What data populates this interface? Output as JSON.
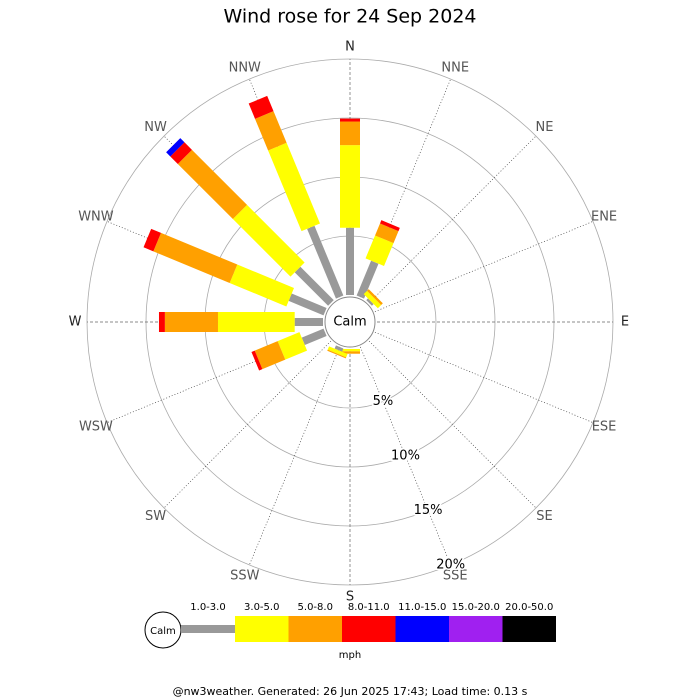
{
  "chart_data": {
    "type": "windrose",
    "title": "Wind rose for 24 Sep 2024",
    "directions": [
      "N",
      "NNE",
      "NE",
      "ENE",
      "E",
      "ESE",
      "SE",
      "SSE",
      "S",
      "SSW",
      "SW",
      "WSW",
      "W",
      "WNW",
      "NW",
      "NNW"
    ],
    "calm_label": "Calm",
    "rlim": [
      0,
      20
    ],
    "rticks": [
      {
        "value": 5,
        "label": "5%"
      },
      {
        "value": 10,
        "label": "10%"
      },
      {
        "value": 15,
        "label": "15%"
      },
      {
        "value": 20,
        "label": "20%"
      }
    ],
    "series": [
      {
        "name": "1.0-3.0",
        "color": "#999999",
        "values": [
          5.7,
          3.2,
          0.2,
          0,
          0,
          0,
          0,
          0,
          0,
          0.3,
          0,
          2.0,
          2.4,
          3.2,
          4.0,
          6.4
        ]
      },
      {
        "name": "3.0-5.0",
        "color": "#ffff00",
        "values": [
          7.0,
          2.1,
          0.4,
          0,
          0,
          0,
          0,
          0,
          0.2,
          0.3,
          0,
          2.0,
          6.5,
          5.2,
          6.9,
          7.4
        ]
      },
      {
        "name": "5.0-8.0",
        "color": "#ffa000",
        "values": [
          2.0,
          1.1,
          0.2,
          0,
          0,
          0,
          0,
          0,
          0.2,
          0.1,
          0,
          2.1,
          4.5,
          7.0,
          6.6,
          2.9
        ]
      },
      {
        "name": "8.0-11.0",
        "color": "#ff0000",
        "values": [
          0.25,
          0.3,
          0,
          0,
          0,
          0,
          0,
          0,
          0,
          0,
          0,
          0.3,
          0.5,
          0.9,
          0.9,
          1.4
        ]
      },
      {
        "name": "11.0-15.0",
        "color": "#0000ff",
        "values": [
          0,
          0,
          0,
          0,
          0,
          0,
          0,
          0,
          0,
          0,
          0,
          0,
          0,
          0,
          0.5,
          0
        ]
      },
      {
        "name": "15.0-20.0",
        "color": "#a020f0",
        "values": [
          0,
          0,
          0,
          0,
          0,
          0,
          0,
          0,
          0,
          0,
          0,
          0,
          0,
          0,
          0,
          0
        ]
      },
      {
        "name": "20.0-50.0",
        "color": "#000000",
        "values": [
          0,
          0,
          0,
          0,
          0,
          0,
          0,
          0,
          0,
          0,
          0,
          0,
          0,
          0,
          0,
          0
        ]
      }
    ],
    "unit": "mph"
  },
  "footer": "@nw3weather. Generated: 26 Jun 2025 17:43; Load time: 0.13 s"
}
